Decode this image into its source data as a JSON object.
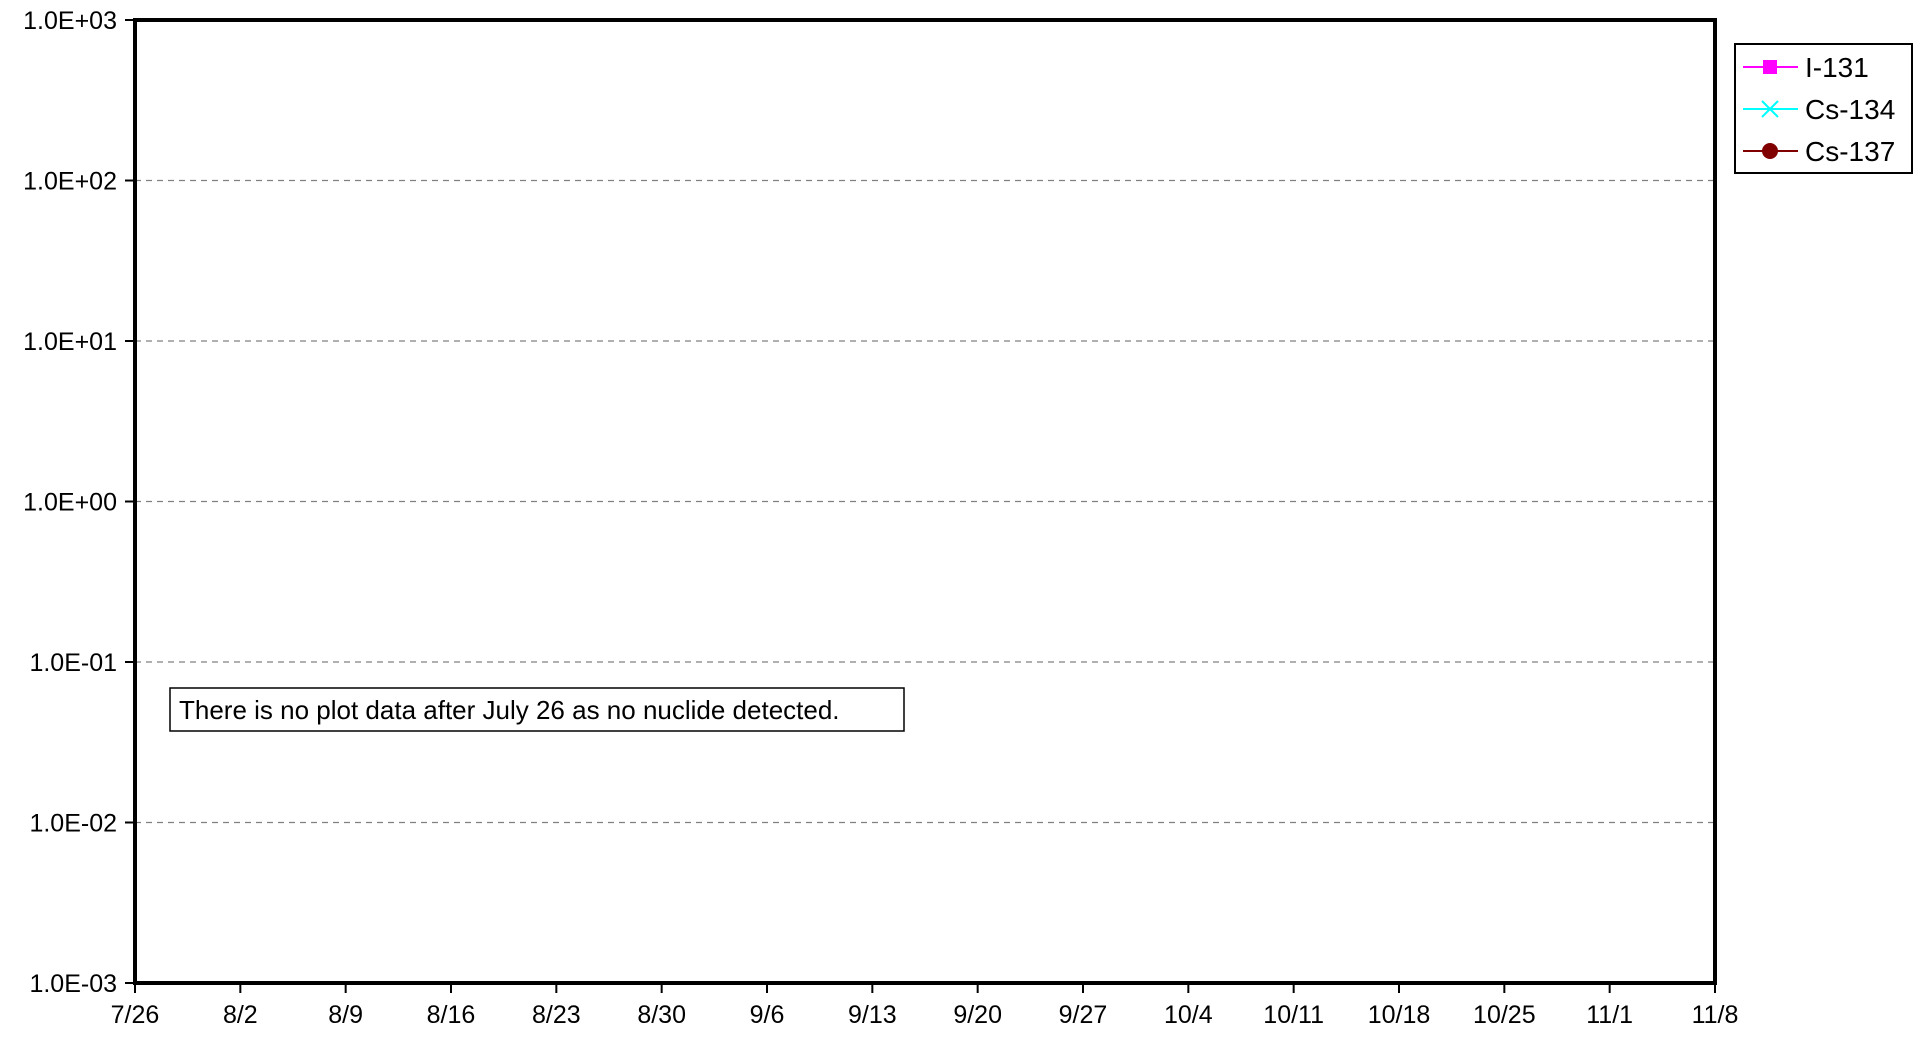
{
  "chart_data": {
    "type": "line",
    "title": "",
    "xlabel": "",
    "ylabel": "",
    "y_scale": "log",
    "ylim": [
      0.001,
      1000
    ],
    "xlim": [
      "7/26",
      "11/8"
    ],
    "x_ticks": [
      "7/26",
      "8/2",
      "8/9",
      "8/16",
      "8/23",
      "8/30",
      "9/6",
      "9/13",
      "9/20",
      "9/27",
      "10/4",
      "10/11",
      "10/18",
      "10/25",
      "11/1",
      "11/8"
    ],
    "y_ticks": [
      {
        "value": 1000,
        "label": "1.0E+03"
      },
      {
        "value": 100,
        "label": "1.0E+02"
      },
      {
        "value": 10,
        "label": "1.0E+01"
      },
      {
        "value": 1,
        "label": "1.0E+00"
      },
      {
        "value": 0.1,
        "label": "1.0E-01"
      },
      {
        "value": 0.01,
        "label": "1.0E-02"
      },
      {
        "value": 0.001,
        "label": "1.0E-03"
      }
    ],
    "grid": {
      "y_major": true,
      "style": "dashed"
    },
    "legend_position": "right",
    "series": [
      {
        "name": "I-131",
        "color": "#ff00ff",
        "marker": "square",
        "points": []
      },
      {
        "name": "Cs-134",
        "color": "#00ffff",
        "marker": "x",
        "points": []
      },
      {
        "name": "Cs-137",
        "color": "#800000",
        "marker": "circle",
        "points": []
      }
    ],
    "annotation": "There is no plot data after July 26 as no nuclide detected."
  }
}
